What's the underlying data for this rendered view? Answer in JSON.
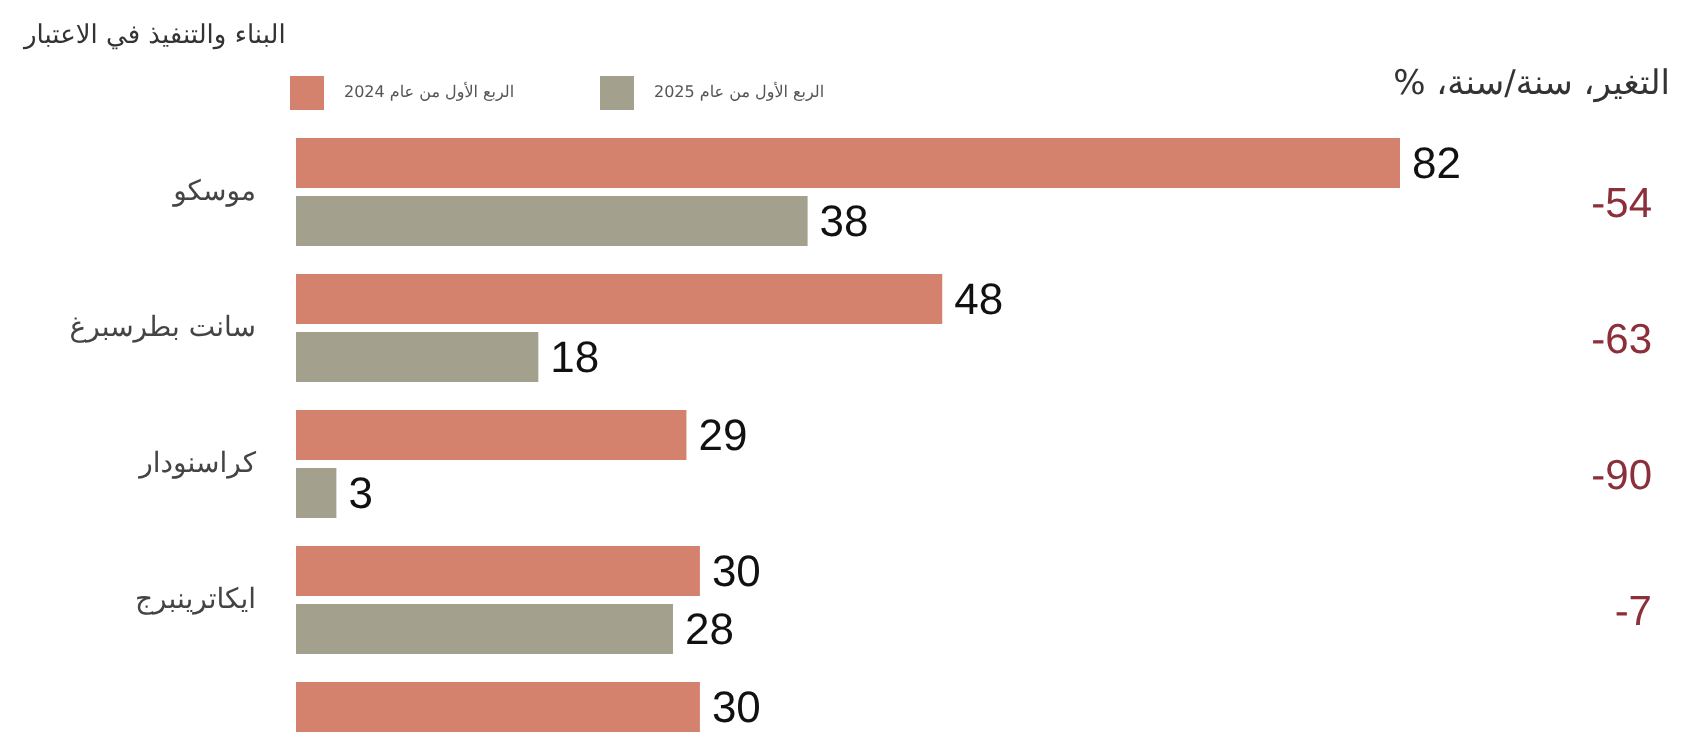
{
  "chart_data": {
    "type": "bar",
    "orientation": "horizontal",
    "title": "البناء والتنفيذ في الاعتبار",
    "categories": [
      "موسكو",
      "سانت بطرسبرغ",
      "كراسنودار",
      "ايكاترينبرج",
      null
    ],
    "series": [
      {
        "name": "الربع الأول من عام 2024",
        "color": "#d4826e",
        "values": [
          82,
          48,
          29,
          30,
          30
        ]
      },
      {
        "name": "الربع الأول من عام 2025",
        "color": "#a3a08e",
        "values": [
          38,
          18,
          3,
          28,
          null
        ]
      }
    ],
    "data_labels": true,
    "legend": "top left",
    "annotations": [
      "التغير، سنة/سنة، %",
      "-54",
      "-63",
      "-90",
      "-7"
    ]
  }
}
